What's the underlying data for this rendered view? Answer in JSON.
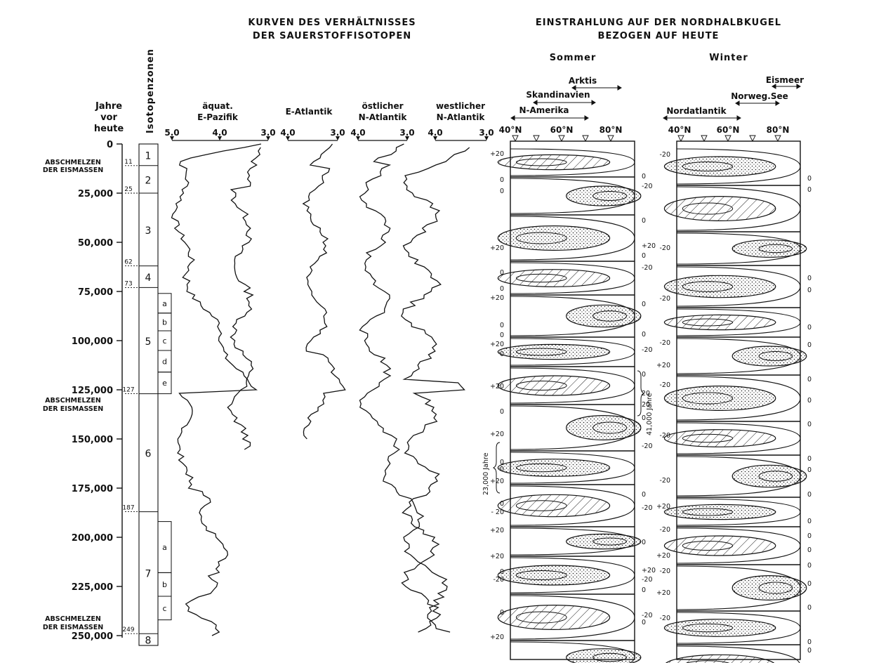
{
  "headings": {
    "isotope_title_1": "KURVEN DES VERHÄLTNISSES",
    "isotope_title_2": "DER SAUERSTOFFISOTOPEN",
    "insolation_title_1": "EINSTRAHLUNG AUF DER NORDHALBKUGEL",
    "insolation_title_2": "BEZOGEN AUF HEUTE",
    "summer": "Sommer",
    "winter": "Winter"
  },
  "age_axis": {
    "label_1": "Jahre",
    "label_2": "vor",
    "label_3": "heute",
    "ticks": [
      "0",
      "25,000",
      "50,000",
      "75,000",
      "100,000",
      "125,000",
      "150,000",
      "175,000",
      "200,000",
      "225,000",
      "250,000"
    ],
    "tick_values": [
      0,
      25000,
      50000,
      75000,
      100000,
      125000,
      150000,
      175000,
      200000,
      225000,
      250000
    ]
  },
  "melt_events": [
    {
      "line1": "ABSCHMELZEN",
      "line2": "DER EISMASSEN",
      "age": 11000
    },
    {
      "line1": "ABSCHMELZEN",
      "line2": "DER EISMASSEN",
      "age": 127000
    },
    {
      "line1": "ABSCHMELZEN",
      "line2": "DER EISMASSEN",
      "age": 240000
    }
  ],
  "zones": {
    "title": "Isotopenzonen",
    "boundaries": [
      "11",
      "25",
      "62",
      "73",
      "127",
      "187",
      "249"
    ],
    "boundary_values": [
      11000,
      25000,
      62000,
      73000,
      127000,
      187000,
      249000
    ],
    "labels": [
      "1",
      "2",
      "3",
      "4",
      "5",
      "6",
      "7",
      "8"
    ],
    "zone_ranges": [
      [
        0,
        11000
      ],
      [
        11000,
        25000
      ],
      [
        25000,
        62000
      ],
      [
        62000,
        73000
      ],
      [
        73000,
        127000
      ],
      [
        127000,
        187000
      ],
      [
        187000,
        249000
      ],
      [
        249000,
        255000
      ]
    ],
    "subzones5": [
      "a",
      "b",
      "c",
      "d",
      "e"
    ],
    "subzones7": [
      "a",
      "b",
      "c"
    ]
  },
  "isotope_curves": [
    {
      "name_1": "äquat.",
      "name_2": "E-Pazifik",
      "ticks": [
        "5.0",
        "4.0",
        "3.0"
      ],
      "tick_values": [
        5.0,
        4.0,
        3.0
      ]
    },
    {
      "name_1": "",
      "name_2": "E-Atlantik",
      "ticks": [
        "4.0",
        "3.0"
      ],
      "tick_values": [
        4.0,
        3.0
      ]
    },
    {
      "name_1": "östlicher",
      "name_2": "N-Atlantik",
      "ticks": [
        "4.0",
        "3.0"
      ],
      "tick_values": [
        4.0,
        3.0
      ]
    },
    {
      "name_1": "westlicher",
      "name_2": "N-Atlantik",
      "ticks": [
        "4.0",
        "3.0"
      ],
      "tick_values": [
        4.0,
        3.0
      ]
    }
  ],
  "lat_axis": [
    "40°N",
    "60°N",
    "80°N"
  ],
  "summer_regions": {
    "arktis": "Arktis",
    "skandinavien": "Skandinavien",
    "namerika": "N-Amerika"
  },
  "winter_regions": {
    "eismeer": "Eismeer",
    "norwegsee": "Norweg.See",
    "nordatlantik": "Nordatlantik"
  },
  "periods": {
    "p23": "23,000 Jahre",
    "p41": "41,000 Jahre"
  },
  "contour_labels": {
    "plus20": "+20",
    "minus20": "-20",
    "zero": "0",
    "minus20_spaced": "- 20",
    "twenty": "20"
  },
  "legend_colors": {
    "ink": "#111111",
    "paper": "#ffffff"
  }
}
